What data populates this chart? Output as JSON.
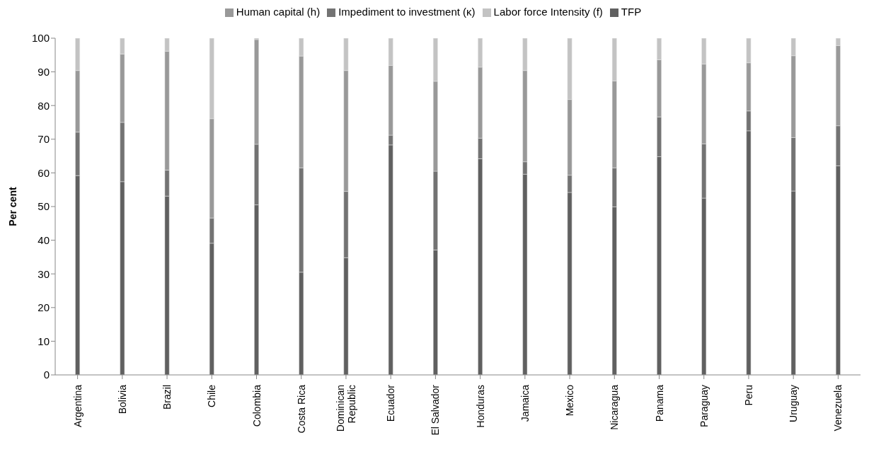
{
  "chart_data": {
    "type": "bar",
    "stacked": true,
    "ylabel": "Per cent",
    "ylim": [
      0,
      100
    ],
    "yticks": [
      0,
      10,
      20,
      30,
      40,
      50,
      60,
      70,
      80,
      90,
      100
    ],
    "legend": "top",
    "grid": false,
    "categories": [
      "Argentina",
      "Bolivia",
      "Brazil",
      "Chile",
      "Colombia",
      "Costa Rica",
      "Dominican Republic",
      "Ecuador",
      "El Salvador",
      "Honduras",
      "Jamaica",
      "Mexico",
      "Nicaragua",
      "Panama",
      "Paraguay",
      "Peru",
      "Uruguay",
      "Venezuela"
    ],
    "series": [
      {
        "name": "TFP",
        "color": "#606060",
        "values": [
          59.2,
          57.4,
          53.1,
          39.1,
          50.5,
          30.5,
          34.8,
          68.3,
          37.1,
          64.2,
          59.6,
          54.2,
          49.9,
          64.8,
          52.5,
          72.5,
          54.6,
          62.1
        ]
      },
      {
        "name": "Impediment to investment (κ)",
        "color": "#737373",
        "values": [
          12.9,
          17.6,
          7.7,
          7.5,
          18,
          31,
          19.7,
          2.9,
          23.4,
          6.1,
          3.7,
          5.1,
          11.6,
          11.8,
          16.1,
          5.9,
          15.9,
          11.9
        ]
      },
      {
        "name": "Human capital (h)",
        "color": "#999999",
        "values": [
          18.3,
          20.3,
          35.3,
          29.5,
          31.1,
          33.2,
          35.9,
          20.7,
          26.7,
          21.1,
          27.1,
          22.5,
          25.8,
          17,
          23.7,
          14.3,
          24.3,
          23.8
        ]
      },
      {
        "name": "Labor force Intensity (f)",
        "color": "#c3c3c3",
        "values": [
          9.6,
          4.7,
          3.9,
          23.9,
          0.4,
          5.3,
          9.6,
          8.1,
          12.8,
          8.6,
          9.6,
          18.2,
          12.7,
          6.4,
          7.7,
          7.3,
          5.2,
          2.2
        ]
      }
    ]
  }
}
